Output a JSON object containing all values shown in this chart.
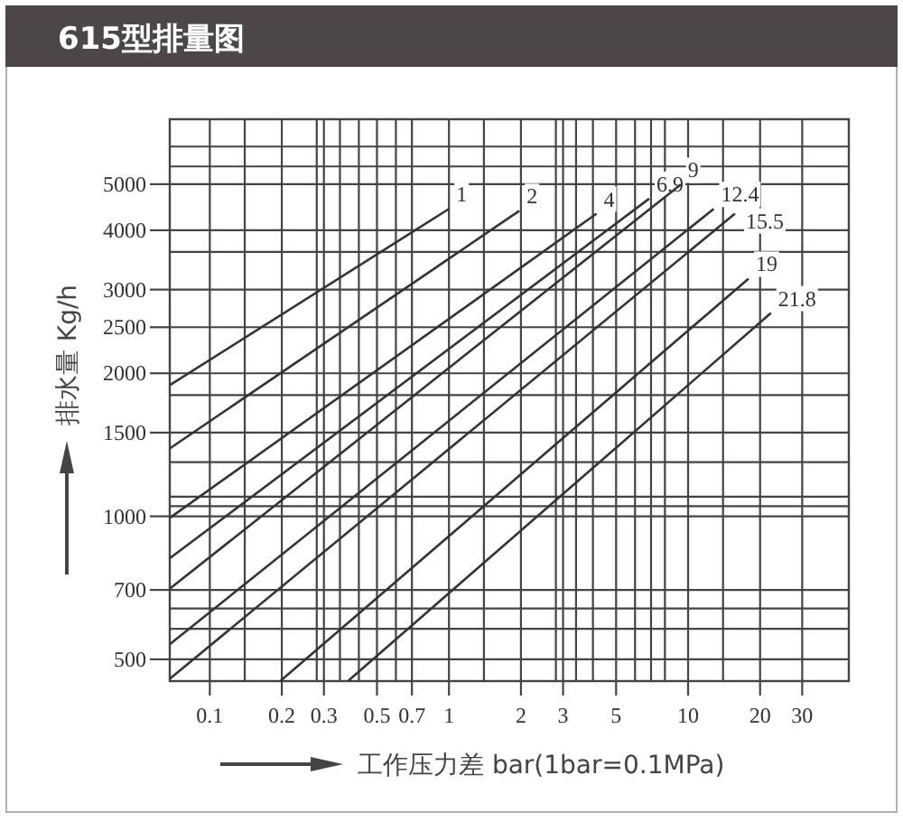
{
  "chart_data": {
    "type": "line",
    "title": "615型排量图",
    "xlabel": "工作压力差 bar(1bar=0.1MPa)",
    "ylabel": "排水量 Kg/h",
    "log": "xy",
    "grid": true,
    "marker": "none",
    "xlim": [
      0.068,
      47
    ],
    "ylim": [
      450,
      6850
    ],
    "xticks": [
      0.1,
      {
        "value": 0.14,
        "label": null
      },
      0.2,
      {
        "value": 0.28,
        "label": null
      },
      0.3,
      {
        "value": 0.35,
        "label": null
      },
      {
        "value": 0.42,
        "label": null
      },
      0.5,
      {
        "value": 0.6,
        "label": null
      },
      0.7,
      1,
      {
        "value": 1.4,
        "label": null
      },
      2,
      {
        "value": 2.8,
        "label": null
      },
      3,
      {
        "value": 3.4,
        "label": null
      },
      {
        "value": 4,
        "label": null
      },
      5,
      {
        "value": 6,
        "label": null
      },
      {
        "value": 7,
        "label": null
      },
      {
        "value": 8,
        "label": null
      },
      10,
      {
        "value": 14,
        "label": null
      },
      20,
      30
    ],
    "yticks": [
      500,
      {
        "value": 580,
        "label": null
      },
      {
        "value": 640,
        "label": null
      },
      700,
      1000,
      {
        "value": 1050,
        "label": null
      },
      {
        "value": 1100,
        "label": null
      },
      {
        "value": 1300,
        "label": null
      },
      1500,
      {
        "value": 1800,
        "label": null
      },
      2000,
      2500,
      3000,
      {
        "value": 3600,
        "label": null
      },
      4000,
      5000,
      {
        "value": 5450,
        "label": null
      },
      {
        "value": 6000,
        "label": null
      }
    ],
    "series": [
      {
        "name": "1",
        "color": "#333333",
        "x": [
          0.068,
          1.0
        ],
        "values": [
          1888,
          4436
        ]
      },
      {
        "name": "2",
        "color": "#333333",
        "x": [
          0.068,
          1.97
        ],
        "values": [
          1389,
          4396
        ]
      },
      {
        "name": "4",
        "color": "#333333",
        "x": [
          0.068,
          4.14
        ],
        "values": [
          992,
          4335
        ]
      },
      {
        "name": "6.9",
        "color": "#333333",
        "x": [
          0.068,
          6.88
        ],
        "values": [
          816,
          4662
        ]
      },
      {
        "name": "9",
        "color": "#333333",
        "x": [
          0.068,
          9.3
        ],
        "values": [
          704,
          4988
        ]
      },
      {
        "name": "12.4",
        "color": "#333333",
        "x": [
          0.068,
          12.8
        ],
        "values": [
          538,
          4436
        ]
      },
      {
        "name": "15.5",
        "color": "#333333",
        "x": [
          0.068,
          15.7
        ],
        "values": [
          455,
          4335
        ]
      },
      {
        "name": "19",
        "color": "#333333",
        "x": [
          0.198,
          17.9
        ],
        "values": [
          451,
          3164
        ]
      },
      {
        "name": "21.8",
        "color": "#333333",
        "x": [
          0.38,
          22.2
        ],
        "values": [
          451,
          2678
        ]
      }
    ]
  }
}
